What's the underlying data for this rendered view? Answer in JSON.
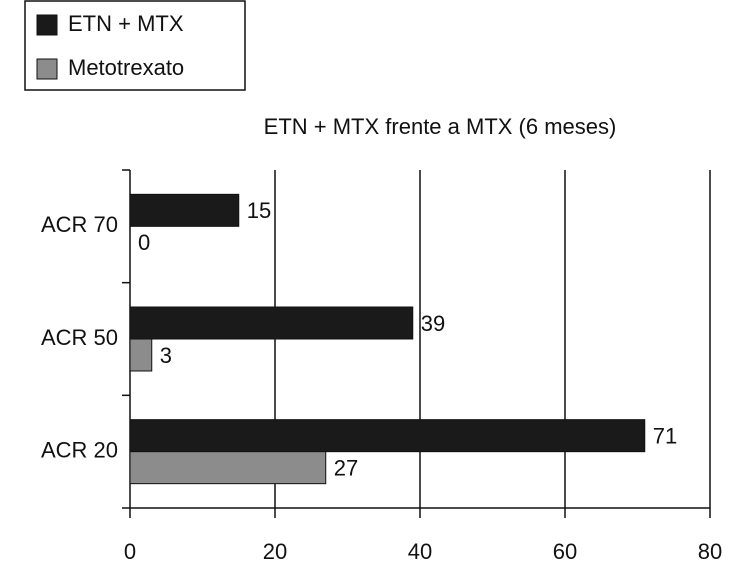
{
  "chart_data": {
    "type": "bar",
    "orientation": "horizontal",
    "title": "ETN + MTX frente a MTX (6 meses)",
    "categories": [
      "ACR 70",
      "ACR 50",
      "ACR 20"
    ],
    "series": [
      {
        "name": "ETN + MTX",
        "color": "#1a1a1a",
        "values": [
          15,
          39,
          71
        ]
      },
      {
        "name": "Metotrexato",
        "color": "#8c8c8c",
        "values": [
          0,
          3,
          27
        ]
      }
    ],
    "xlim": [
      0,
      80
    ],
    "xticks": [
      0,
      20,
      40,
      60,
      80
    ],
    "grid": true,
    "legend": "top-left"
  }
}
